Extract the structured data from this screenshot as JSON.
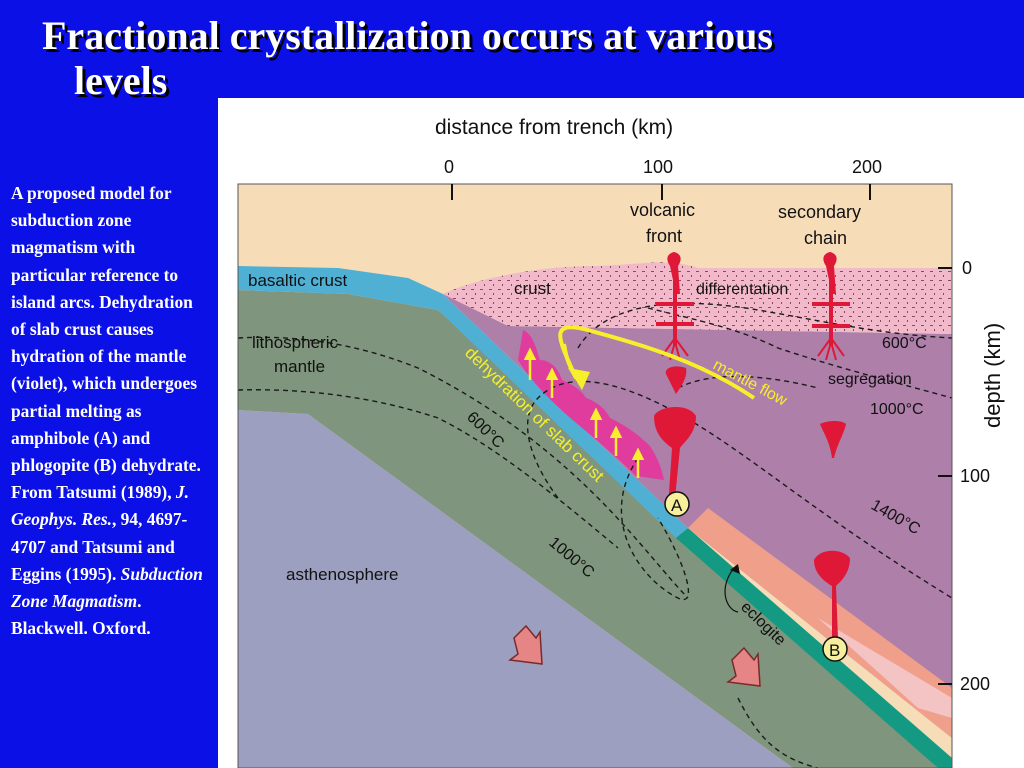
{
  "slide": {
    "title_line1": "Fractional crystallization occurs at various",
    "title_line2": "levels"
  },
  "caption": {
    "p1": "A proposed model for subduction zone magmatism with particular reference to island arcs. Dehydration of slab crust causes hydration of the mantle (violet), which undergoes partial melting as amphibole (A) and phlogopite (B) dehydrate. From Tatsumi (1989), ",
    "journal": "J. Geophys. Res.",
    "p2": ", 94, 4697-4707 and Tatsumi and Eggins (1995). ",
    "book": "Subduction Zone Magmatism",
    "p3": ". Blackwell. Oxford."
  },
  "diagram": {
    "top_axis": {
      "title": "distance from trench (km)",
      "ticks": [
        "0",
        "100",
        "200"
      ]
    },
    "right_axis": {
      "title": "depth (km)",
      "ticks": [
        "0",
        "100",
        "200"
      ]
    },
    "labels": {
      "volcanic_front_1": "volcanic",
      "volcanic_front_2": "front",
      "secondary_chain_1": "secondary",
      "secondary_chain_2": "chain",
      "basaltic_crust": "basaltic crust",
      "crust": "crust",
      "differentation": "differentation",
      "lithospheric": "lithospheric",
      "mantle": "mantle",
      "iso_600_right": "600°C",
      "segregation": "segregation",
      "mantle_flow": "mantle flow",
      "iso_1000_right": "1000°C",
      "dehydration": "dehydration of slab crust",
      "iso_600_slab": "600°C",
      "iso_1400": "1400°C",
      "iso_1000_slab": "1000°C",
      "asthenosphere": "asthenosphere",
      "eclogite": "eclogite",
      "marker_a": "A",
      "marker_b": "B"
    },
    "colors": {
      "sky_crust": "#f7dcb8",
      "arc_crust": "#f1b9c9",
      "mantle_wedge": "#ad7fa9",
      "lithosphere": "#7f957d",
      "asthenosphere": "#9d9fc0",
      "basaltic_crust": "#4fb0d4",
      "slab_teal": "#149a83",
      "magma": "#e01838",
      "melt_zone": "#e03c9e",
      "yellow": "#f7ef2c"
    }
  }
}
